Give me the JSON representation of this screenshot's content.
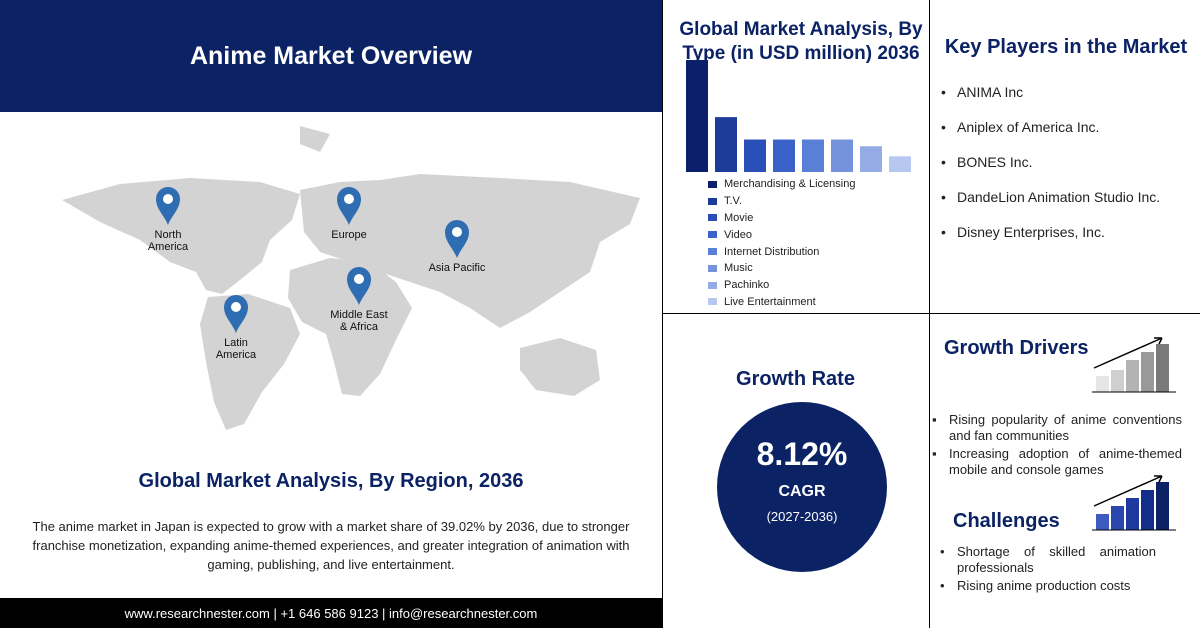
{
  "header": {
    "title": "Anime Market Overview"
  },
  "map": {
    "regions": [
      "North America",
      "Europe",
      "Asia Pacific",
      "Middle East & Africa",
      "Latin America"
    ],
    "caption": "Global Market Analysis, By Region, 2036"
  },
  "description": "The anime market in Japan is expected to grow with a market share of 39.02% by 2036, due to stronger franchise monetization, expanding anime-themed experiences, and greater integration of animation with gaming, publishing, and live entertainment.",
  "footer": "www.researchnester.com | +1 646 586 9123 | info@researchnester.com",
  "chart_data": {
    "type": "bar",
    "title": "Global Market Analysis, By Type (in USD million) 2036",
    "categories": [
      "Merchandising & Licensing",
      "T.V.",
      "Movie",
      "Video",
      "Internet Distribution",
      "Music",
      "Pachinko",
      "Live Entertainment"
    ],
    "values": [
      100,
      49,
      29,
      29,
      29,
      29,
      23,
      14
    ],
    "colors": [
      "#0b1f6a",
      "#1d3b99",
      "#2a4fb8",
      "#3a62c9",
      "#5a7fd6",
      "#7593dd",
      "#94abe6",
      "#b7c8f0"
    ]
  },
  "key_players": {
    "title": "Key Players in the Market",
    "items": [
      "ANIMA Inc",
      "Aniplex of America Inc.",
      "BONES Inc.",
      "DandeLion Animation Studio Inc.",
      "Disney Enterprises, Inc."
    ]
  },
  "growth_rate": {
    "title": "Growth Rate",
    "value": "8.12%",
    "label": "CAGR",
    "period": "(2027-2036)"
  },
  "growth_drivers": {
    "title": "Growth Drivers",
    "items": [
      "Rising popularity of anime conventions and fan communities",
      "Increasing adoption of anime-themed mobile and console games"
    ]
  },
  "challenges": {
    "title": "Challenges",
    "items": [
      "Shortage of skilled animation professionals",
      "Rising anime production costs"
    ]
  }
}
